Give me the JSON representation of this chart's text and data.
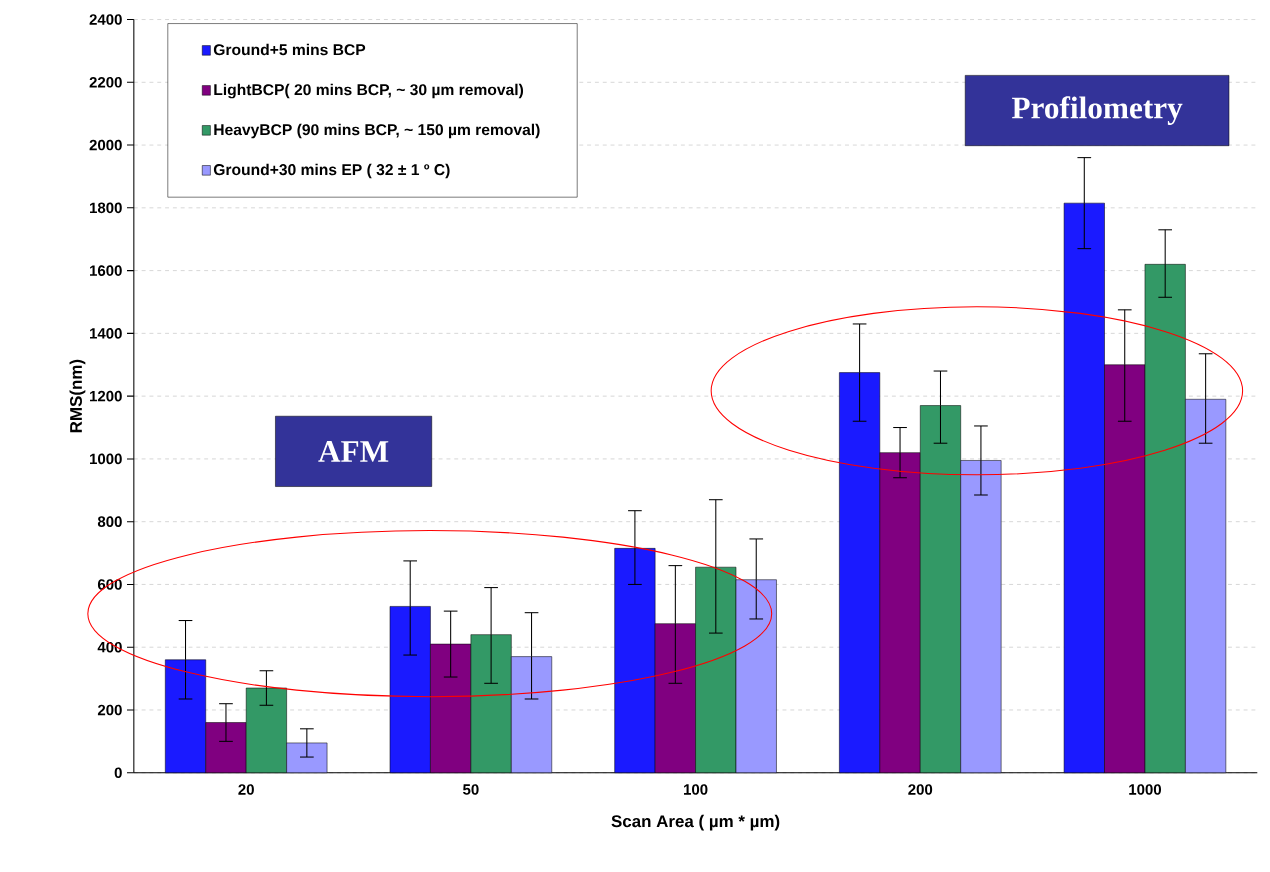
{
  "chart_data": {
    "type": "bar",
    "xlabel": "Scan Area ( µm * µm)",
    "ylabel": "RMS(nm)",
    "categories": [
      "20",
      "50",
      "100",
      "200",
      "1000"
    ],
    "series": [
      {
        "name": "Ground+5 mins BCP",
        "color": "#1a1aff",
        "values": [
          360,
          530,
          715,
          1275,
          1815
        ],
        "errors": [
          [
            235,
            485
          ],
          [
            375,
            675
          ],
          [
            600,
            835
          ],
          [
            1120,
            1430
          ],
          [
            1670,
            1960
          ]
        ]
      },
      {
        "name": "LightBCP( 20 mins BCP,  ~ 30 µm removal)",
        "color": "#800080",
        "values": [
          160,
          410,
          475,
          1020,
          1300
        ],
        "errors": [
          [
            100,
            220
          ],
          [
            305,
            515
          ],
          [
            285,
            660
          ],
          [
            940,
            1100
          ],
          [
            1120,
            1475
          ]
        ]
      },
      {
        "name": "HeavyBCP (90 mins BCP,  ~ 150 µm removal)",
        "color": "#339966",
        "values": [
          270,
          440,
          655,
          1170,
          1620
        ],
        "errors": [
          [
            215,
            325
          ],
          [
            285,
            590
          ],
          [
            445,
            870
          ],
          [
            1050,
            1280
          ],
          [
            1515,
            1730
          ]
        ]
      },
      {
        "name": "Ground+30 mins EP ( 32 ± 1 º C)",
        "color": "#9999ff",
        "values": [
          95,
          370,
          615,
          995,
          1190
        ],
        "errors": [
          [
            50,
            140
          ],
          [
            235,
            510
          ],
          [
            490,
            745
          ],
          [
            885,
            1105
          ],
          [
            1050,
            1335
          ]
        ]
      }
    ],
    "ylim": [
      0,
      2400
    ],
    "yticks": [
      0,
      200,
      400,
      600,
      800,
      1000,
      1200,
      1400,
      1600,
      1800,
      2000,
      2200,
      2400
    ],
    "grid": "y",
    "legend": "top left",
    "annotations": [
      "AFM",
      "Profilometry"
    ]
  }
}
